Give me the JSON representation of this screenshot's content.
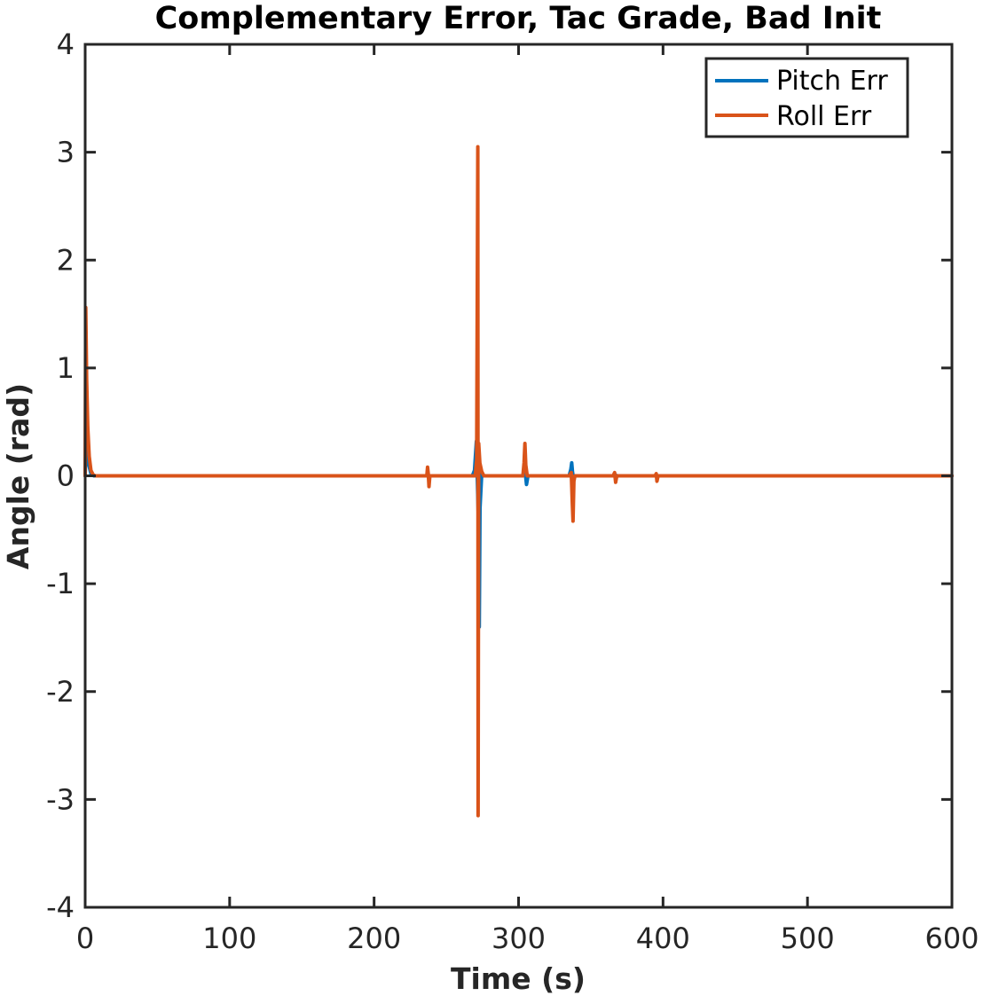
{
  "chart_data": {
    "type": "line",
    "title": "Complementary Error, Tac Grade, Bad Init",
    "xlabel": "Time (s)",
    "ylabel": "Angle (rad)",
    "xlim": [
      0,
      600
    ],
    "ylim": [
      -4,
      4
    ],
    "xticks": [
      0,
      100,
      200,
      300,
      400,
      500,
      600
    ],
    "yticks": [
      -4,
      -3,
      -2,
      -1,
      0,
      1,
      2,
      3,
      4
    ],
    "xtick_labels": [
      "0",
      "100",
      "200",
      "300",
      "400",
      "500",
      "600"
    ],
    "ytick_labels": [
      "-4",
      "-3",
      "-2",
      "-1",
      "0",
      "1",
      "2",
      "3",
      "4"
    ],
    "grid": false,
    "legend_position": "top-right",
    "series": [
      {
        "name": "Pitch Err",
        "color": "#0072BD",
        "points": [
          [
            0,
            0
          ],
          [
            0.5,
            0.35
          ],
          [
            1.0,
            0.78
          ],
          [
            1.5,
            0.4
          ],
          [
            2.5,
            0.1
          ],
          [
            4,
            0.02
          ],
          [
            6,
            0
          ],
          [
            237,
            0
          ],
          [
            268,
            0
          ],
          [
            269.5,
            0.05
          ],
          [
            270.8,
            0.32
          ],
          [
            271.5,
            -0.05
          ],
          [
            272.2,
            -0.4
          ],
          [
            272.8,
            -1.4
          ],
          [
            273.3,
            -0.3
          ],
          [
            274.5,
            0.02
          ],
          [
            276,
            0
          ],
          [
            303,
            0
          ],
          [
            304.5,
            0.05
          ],
          [
            305.5,
            -0.08
          ],
          [
            306.5,
            0
          ],
          [
            335,
            0
          ],
          [
            336.2,
            0.06
          ],
          [
            336.8,
            0.12
          ],
          [
            337.3,
            0.04
          ],
          [
            338,
            -0.02
          ],
          [
            339,
            0
          ],
          [
            366,
            0
          ],
          [
            367,
            0.01
          ],
          [
            368,
            0
          ],
          [
            600,
            0
          ]
        ]
      },
      {
        "name": "Roll Err",
        "color": "#D95319",
        "points": [
          [
            0,
            0
          ],
          [
            0.4,
            1.56
          ],
          [
            1.0,
            0.9
          ],
          [
            1.8,
            0.45
          ],
          [
            2.8,
            0.18
          ],
          [
            4,
            0.05
          ],
          [
            5.5,
            0.01
          ],
          [
            7,
            0
          ],
          [
            236.5,
            0
          ],
          [
            237,
            0.08
          ],
          [
            237.5,
            0.02
          ],
          [
            238,
            -0.1
          ],
          [
            238.6,
            0
          ],
          [
            270,
            0
          ],
          [
            271.0,
            0.15
          ],
          [
            271.8,
            3.05
          ],
          [
            272.0,
            -3.15
          ],
          [
            272.4,
            0.3
          ],
          [
            273.2,
            0.12
          ],
          [
            274.5,
            0.04
          ],
          [
            276,
            0
          ],
          [
            303,
            0
          ],
          [
            303.8,
            0.12
          ],
          [
            304.4,
            0.3
          ],
          [
            305.0,
            0.1
          ],
          [
            306,
            0
          ],
          [
            335,
            0
          ],
          [
            336.5,
            0.03
          ],
          [
            337.2,
            -0.25
          ],
          [
            337.7,
            -0.42
          ],
          [
            338.3,
            -0.05
          ],
          [
            339,
            0
          ],
          [
            365.5,
            0
          ],
          [
            366.5,
            0.03
          ],
          [
            367.2,
            -0.06
          ],
          [
            368,
            0
          ],
          [
            394.5,
            0
          ],
          [
            395.3,
            0.02
          ],
          [
            395.8,
            -0.05
          ],
          [
            396.6,
            0
          ],
          [
            600,
            0
          ]
        ]
      }
    ]
  }
}
